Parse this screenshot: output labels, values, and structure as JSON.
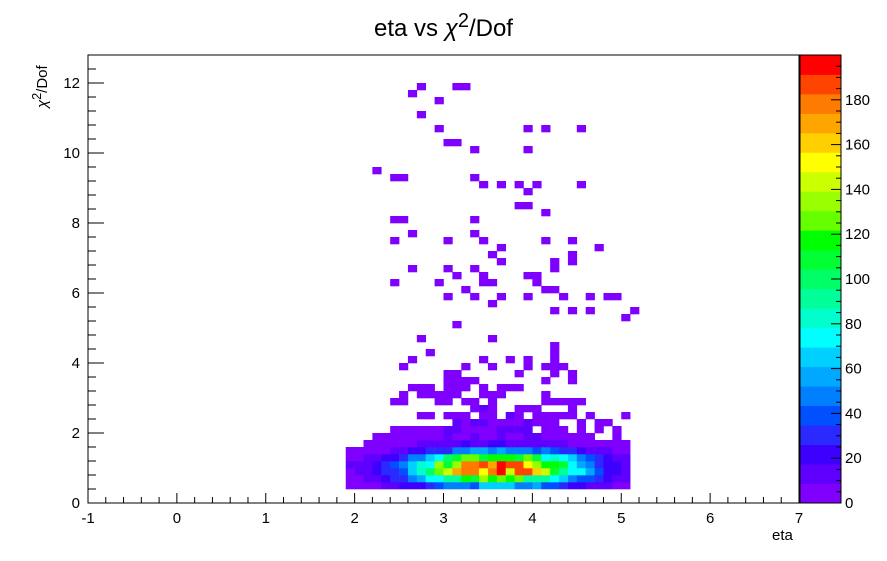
{
  "chart_data": {
    "type": "heatmap",
    "title_parts": [
      "eta vs ",
      "χ",
      "2",
      "/Dof"
    ],
    "xlabel": "eta",
    "ylabel_parts": [
      "χ",
      "2",
      "/Dof"
    ],
    "x_axis": {
      "range": [
        -1,
        7
      ],
      "major_ticks": [
        -1,
        0,
        1,
        2,
        3,
        4,
        5,
        6,
        7
      ],
      "tick_labels": [
        "-1",
        "0",
        "1",
        "2",
        "3",
        "4",
        "5",
        "6",
        "7"
      ]
    },
    "y_axis": {
      "range": [
        0,
        12.8
      ],
      "major_ticks": [
        0,
        2,
        4,
        6,
        8,
        10,
        12
      ],
      "tick_labels": [
        "0",
        "2",
        "4",
        "6",
        "8",
        "10",
        "12"
      ]
    },
    "z_axis": {
      "range": [
        0,
        200
      ],
      "tick_values": [
        0,
        20,
        40,
        60,
        80,
        100,
        120,
        140,
        160,
        180
      ],
      "tick_labels": [
        "0",
        "20",
        "40",
        "60",
        "80",
        "100",
        "120",
        "140",
        "160",
        "180"
      ],
      "palette": [
        "#7f00ff",
        "#5f00ff",
        "#3d00ff",
        "#2a2aff",
        "#0050ff",
        "#0080ff",
        "#00a8ff",
        "#00d0ff",
        "#00ffff",
        "#00ffcc",
        "#00ff99",
        "#00ff66",
        "#00ff33",
        "#00ff00",
        "#66ff00",
        "#99ff00",
        "#ccff00",
        "#ffff00",
        "#ffd000",
        "#ffa500",
        "#ff7a00",
        "#ff4400",
        "#ff0000"
      ]
    },
    "bin_width": {
      "x": 0.1,
      "y": 0.2
    },
    "core": {
      "center_eta": 3.6,
      "center_chi2": 1.0,
      "peak_count": 195,
      "eta_range": [
        1.9,
        5.0
      ],
      "chi2_range": [
        0.4,
        1.8
      ]
    },
    "sparse_bins": [
      [
        2.6,
        11.6
      ],
      [
        2.7,
        11.8
      ],
      [
        3.1,
        11.8
      ],
      [
        3.2,
        11.8
      ],
      [
        2.9,
        11.4
      ],
      [
        2.7,
        11.0
      ],
      [
        2.9,
        10.6
      ],
      [
        3.0,
        10.2
      ],
      [
        3.1,
        10.2
      ],
      [
        3.3,
        10.0
      ],
      [
        3.9,
        10.0
      ],
      [
        3.9,
        10.6
      ],
      [
        4.1,
        10.6
      ],
      [
        4.5,
        10.6
      ],
      [
        2.2,
        9.4
      ],
      [
        2.4,
        9.2
      ],
      [
        2.5,
        9.2
      ],
      [
        3.3,
        9.2
      ],
      [
        3.4,
        9.0
      ],
      [
        3.6,
        9.0
      ],
      [
        3.8,
        9.0
      ],
      [
        3.9,
        8.8
      ],
      [
        4.0,
        9.0
      ],
      [
        4.5,
        9.0
      ],
      [
        3.8,
        8.4
      ],
      [
        3.9,
        8.4
      ],
      [
        4.1,
        8.2
      ],
      [
        2.4,
        8.0
      ],
      [
        2.5,
        8.0
      ],
      [
        3.3,
        8.0
      ],
      [
        2.6,
        7.6
      ],
      [
        2.4,
        7.4
      ],
      [
        3.0,
        7.4
      ],
      [
        3.3,
        7.6
      ],
      [
        3.4,
        7.4
      ],
      [
        3.6,
        7.2
      ],
      [
        3.5,
        7.0
      ],
      [
        3.6,
        6.8
      ],
      [
        4.1,
        7.4
      ],
      [
        4.4,
        7.4
      ],
      [
        4.4,
        7.0
      ],
      [
        4.2,
        6.8
      ],
      [
        4.2,
        6.6
      ],
      [
        4.4,
        6.8
      ],
      [
        4.7,
        7.2
      ],
      [
        2.6,
        6.6
      ],
      [
        3.0,
        6.6
      ],
      [
        3.1,
        6.4
      ],
      [
        3.3,
        6.6
      ],
      [
        3.4,
        6.4
      ],
      [
        3.9,
        6.4
      ],
      [
        4.0,
        6.4
      ],
      [
        2.4,
        6.2
      ],
      [
        2.9,
        6.2
      ],
      [
        3.4,
        6.2
      ],
      [
        3.5,
        6.2
      ],
      [
        4.0,
        6.2
      ],
      [
        4.1,
        6.0
      ],
      [
        4.2,
        6.0
      ],
      [
        3.2,
        6.0
      ],
      [
        3.3,
        5.8
      ],
      [
        3.0,
        5.8
      ],
      [
        3.6,
        5.8
      ],
      [
        3.9,
        5.8
      ],
      [
        4.3,
        5.8
      ],
      [
        4.6,
        5.8
      ],
      [
        4.8,
        5.8
      ],
      [
        4.9,
        5.8
      ],
      [
        3.5,
        5.6
      ],
      [
        4.2,
        5.4
      ],
      [
        4.4,
        5.4
      ],
      [
        4.6,
        5.4
      ],
      [
        5.1,
        5.4
      ],
      [
        5.0,
        5.2
      ]
    ]
  }
}
